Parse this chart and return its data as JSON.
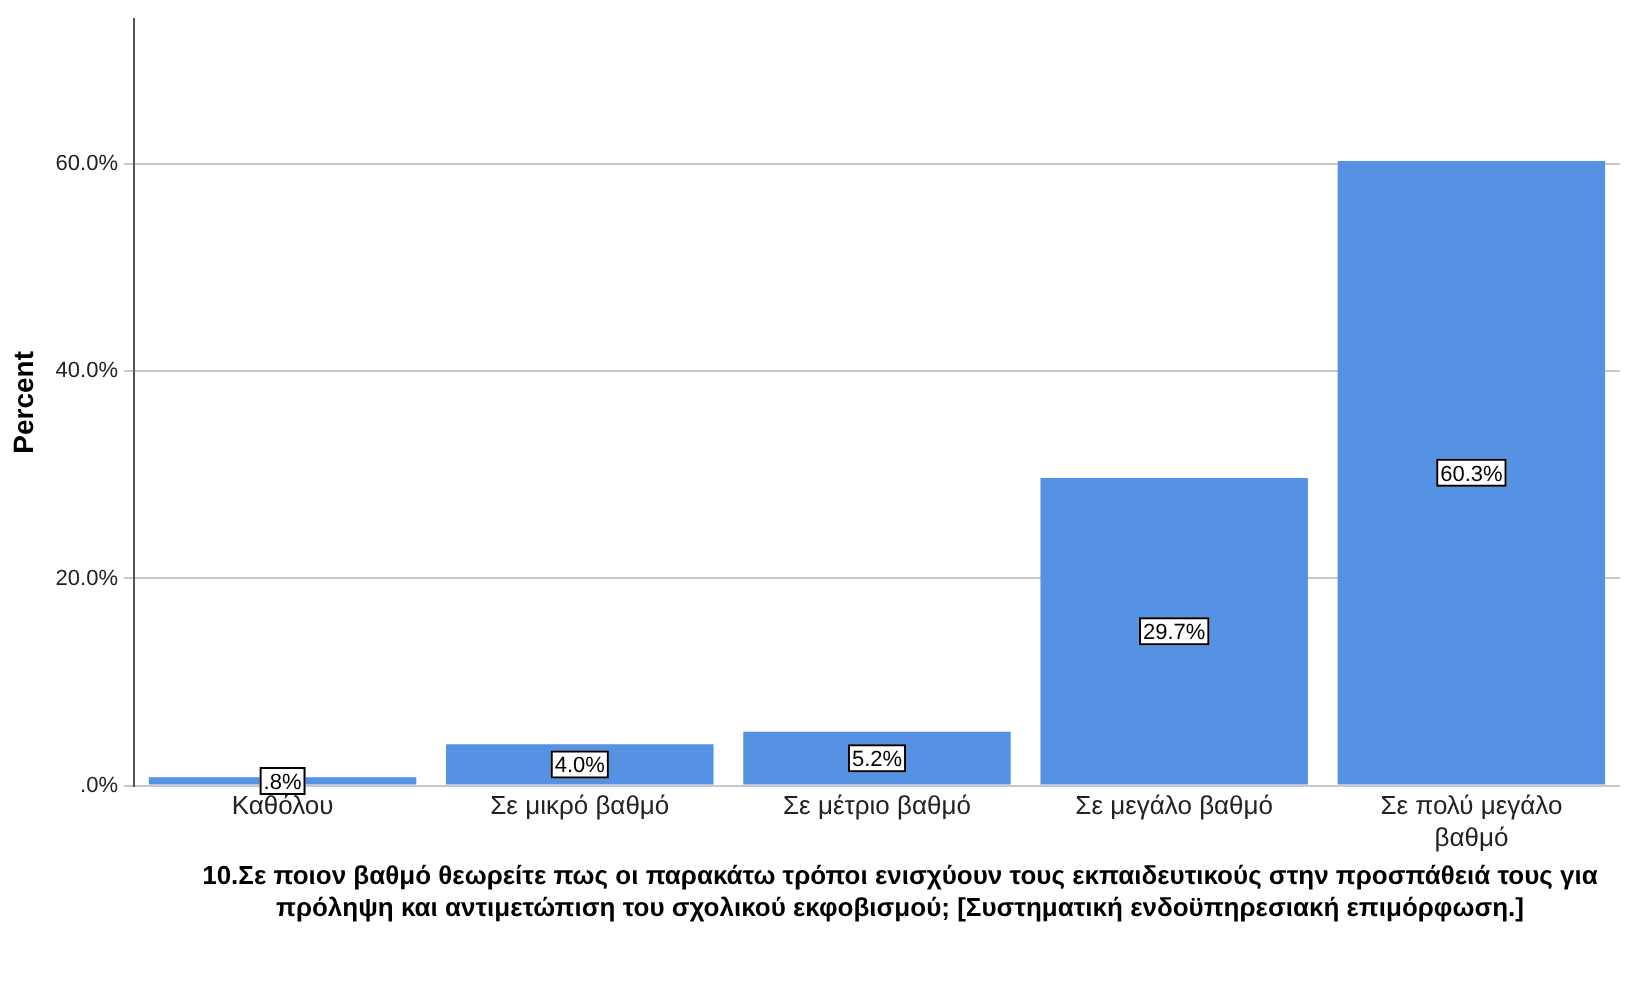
{
  "chart_data": {
    "type": "bar",
    "xlabel": "10.Σε ποιον βαθμό θεωρείτε πως οι παρακάτω τρόποι ενισχύουν τους εκπαιδευτικούς στην προσπάθειά τους για πρόληψη και αντιμετώπιση του σχολικού εκφοβισμού; [Συστηματική ενδοϋπηρεσιακή επιμόρφωση.]",
    "ylabel": "Percent",
    "categories": [
      "Καθόλου",
      "Σε μικρό βαθμό",
      "Σε μέτριο βαθμό",
      "Σε μεγάλο βαθμό",
      "Σε πολύ μεγάλο βαθμό"
    ],
    "values": [
      0.8,
      4.0,
      5.2,
      29.7,
      60.3
    ],
    "value_labels": [
      ".8%",
      "4.0%",
      "5.2%",
      "29.7%",
      "60.3%"
    ],
    "color": "#5592e4",
    "ylim": [
      0,
      74
    ],
    "yticks": [
      {
        "value": 0,
        "label": ".0%"
      },
      {
        "value": 20,
        "label": "20.0%"
      },
      {
        "value": 40,
        "label": "40.0%"
      },
      {
        "value": 60,
        "label": "60.0%"
      }
    ],
    "grid": "y",
    "legend": false
  }
}
